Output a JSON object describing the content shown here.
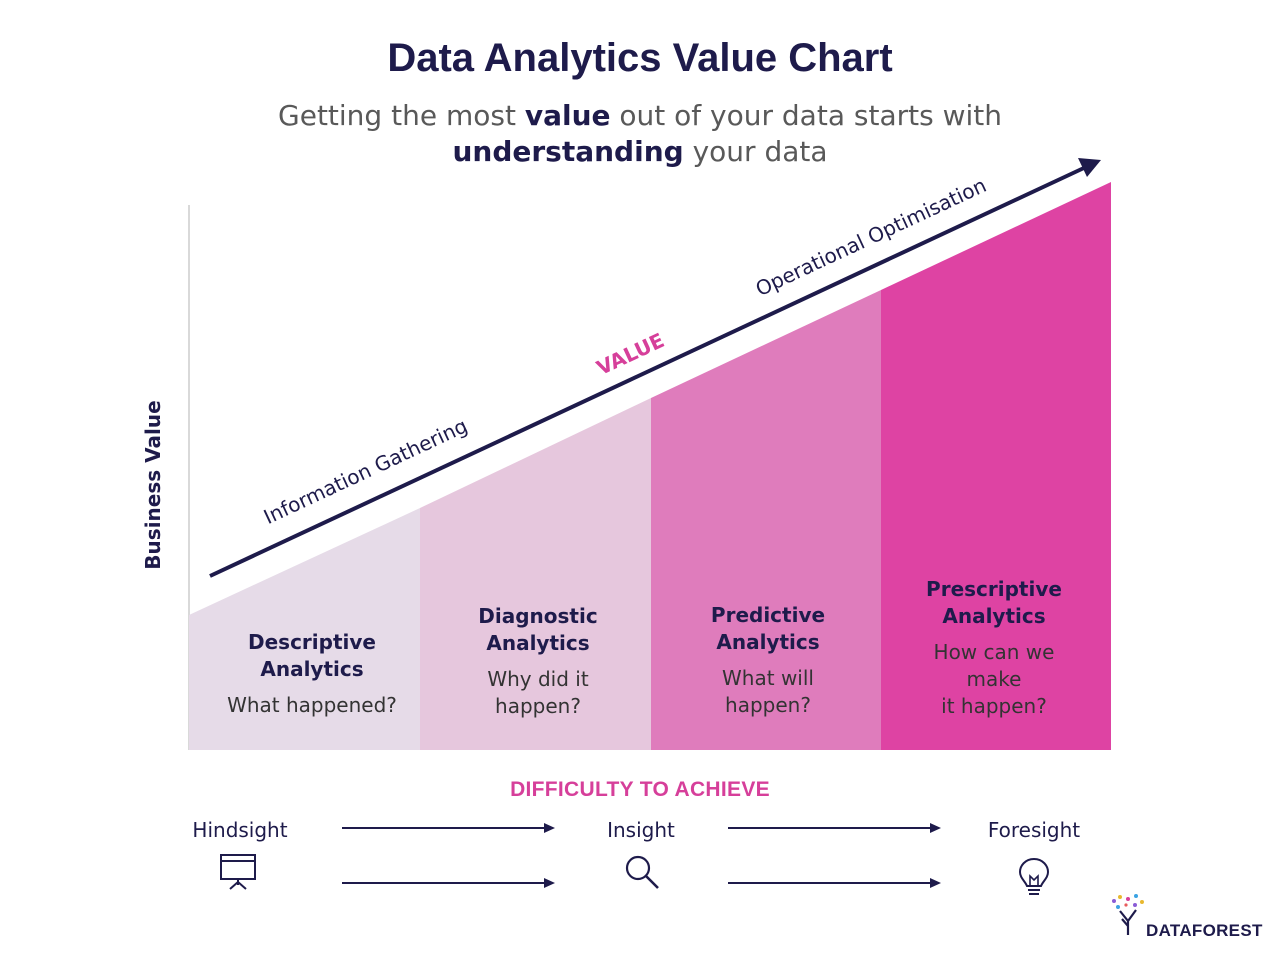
{
  "header": {
    "title": "Data Analytics Value Chart",
    "subtitle_parts": {
      "p1": "Getting the most ",
      "b1": "value",
      "p2": " out of your data starts with",
      "b2": "understanding",
      "p3": " your data"
    }
  },
  "axis": {
    "y_label": "Business Value",
    "x_label": "DIFFICULTY TO ACHIEVE"
  },
  "trend": {
    "left_label": "Information Gathering",
    "center_label": "VALUE",
    "right_label": "Operational Optimisation"
  },
  "columns": [
    {
      "name_line1": "Descriptive",
      "name_line2": "Analytics",
      "question_line1": "What happened?",
      "question_line2": "",
      "question_line3": "",
      "color": "#e6dbe8"
    },
    {
      "name_line1": "Diagnostic",
      "name_line2": "Analytics",
      "question_line1": "Why did it",
      "question_line2": "happen?",
      "question_line3": "",
      "color": "#e6c7dd"
    },
    {
      "name_line1": "Predictive",
      "name_line2": "Analytics",
      "question_line1": "What will",
      "question_line2": "happen?",
      "question_line3": "",
      "color": "#df7cbc"
    },
    {
      "name_line1": "Prescriptive",
      "name_line2": "Analytics",
      "question_line1": "How can we",
      "question_line2": "make",
      "question_line3": "it happen?",
      "color": "#de43a3"
    }
  ],
  "stages": [
    {
      "label": "Hindsight",
      "icon": "presentation-board-icon"
    },
    {
      "label": "Insight",
      "icon": "magnifier-icon"
    },
    {
      "label": "Foresight",
      "icon": "lightbulb-icon"
    }
  ],
  "brand": {
    "logo_text": "DATAFOREST",
    "accent": "#d63f9a",
    "navy": "#1e1b4b"
  }
}
